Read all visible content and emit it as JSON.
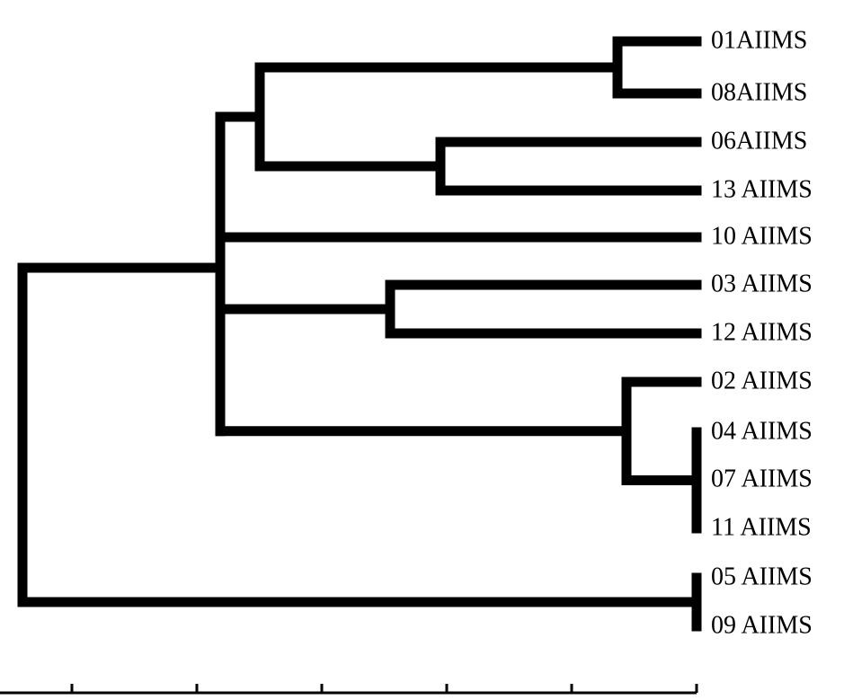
{
  "dendrogram": {
    "leaves": [
      {
        "id": "L1",
        "label": "01AIIMS"
      },
      {
        "id": "L2",
        "label": "08AIIMS"
      },
      {
        "id": "L3",
        "label": "06AIIMS"
      },
      {
        "id": "L4",
        "label": "13 AIIMS"
      },
      {
        "id": "L5",
        "label": "10 AIIMS"
      },
      {
        "id": "L6",
        "label": "03 AIIMS"
      },
      {
        "id": "L7",
        "label": "12 AIIMS"
      },
      {
        "id": "L8",
        "label": "02 AIIMS"
      },
      {
        "id": "L9",
        "label": "04 AIIMS"
      },
      {
        "id": "L10",
        "label": "07 AIIMS"
      },
      {
        "id": "L11",
        "label": "11 AIIMS"
      },
      {
        "id": "L12",
        "label": "05 AIIMS"
      },
      {
        "id": "L13",
        "label": "09 AIIMS"
      }
    ],
    "clusters": [
      {
        "id": "c_01_08",
        "children": [
          "L1",
          "L2"
        ]
      },
      {
        "id": "c_06_13",
        "children": [
          "L3",
          "L4"
        ]
      },
      {
        "id": "c_A",
        "children": [
          "c_01_08",
          "c_06_13"
        ]
      },
      {
        "id": "c_03_12",
        "children": [
          "L6",
          "L7"
        ]
      },
      {
        "id": "c_04_07_11",
        "children": [
          "L9",
          "L10",
          "L11"
        ]
      },
      {
        "id": "c_02_group",
        "children": [
          "L8",
          "c_04_07_11"
        ]
      },
      {
        "id": "c_main",
        "children": [
          "c_A",
          "L5",
          "c_03_12",
          "c_02_group"
        ]
      },
      {
        "id": "c_05_09",
        "children": [
          "L12",
          "L13"
        ]
      },
      {
        "id": "root",
        "children": [
          "c_main",
          "c_05_09"
        ]
      }
    ],
    "scale_ticks": 6
  }
}
